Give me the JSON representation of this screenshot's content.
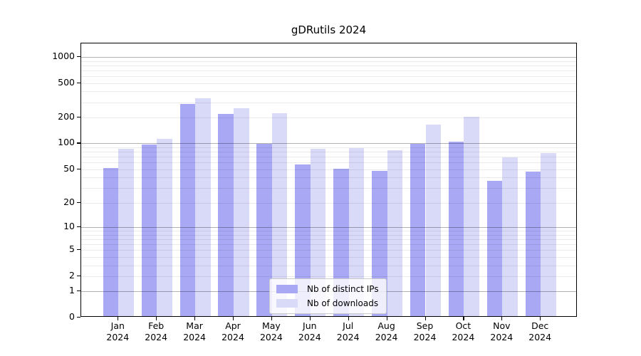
{
  "chart_data": {
    "type": "bar",
    "title": "gDRutils 2024",
    "categories": [
      "Jan",
      "Feb",
      "Mar",
      "Apr",
      "May",
      "Jun",
      "Jul",
      "Aug",
      "Sep",
      "Oct",
      "Nov",
      "Dec"
    ],
    "category_year": "2024",
    "series": [
      {
        "name": "Nb of distinct IPs",
        "color": "#a8a8f5",
        "values": [
          50,
          94,
          278,
          213,
          96,
          55,
          49,
          46,
          95,
          101,
          35,
          45
        ]
      },
      {
        "name": "Nb of downloads",
        "color": "#d9d9f8",
        "values": [
          84,
          109,
          320,
          245,
          216,
          84,
          85,
          81,
          160,
          198,
          66,
          75
        ]
      }
    ],
    "yscale": "log1p",
    "ylim": [
      0,
      1430
    ],
    "ytick_values": [
      0,
      1,
      2,
      5,
      10,
      20,
      50,
      100,
      200,
      500,
      1000
    ],
    "ytick_labels": [
      "0",
      "1",
      "2",
      "5",
      "10",
      "20",
      "50",
      "100",
      "200",
      "500",
      "1000"
    ],
    "grid_major": [
      1,
      10,
      100,
      1000
    ],
    "grid_minor": [
      2,
      3,
      4,
      5,
      6,
      7,
      8,
      9,
      20,
      30,
      40,
      50,
      60,
      70,
      80,
      90,
      200,
      300,
      400,
      500,
      600,
      700,
      800,
      900
    ],
    "legend_position": "bottom-center",
    "grid": "on"
  }
}
